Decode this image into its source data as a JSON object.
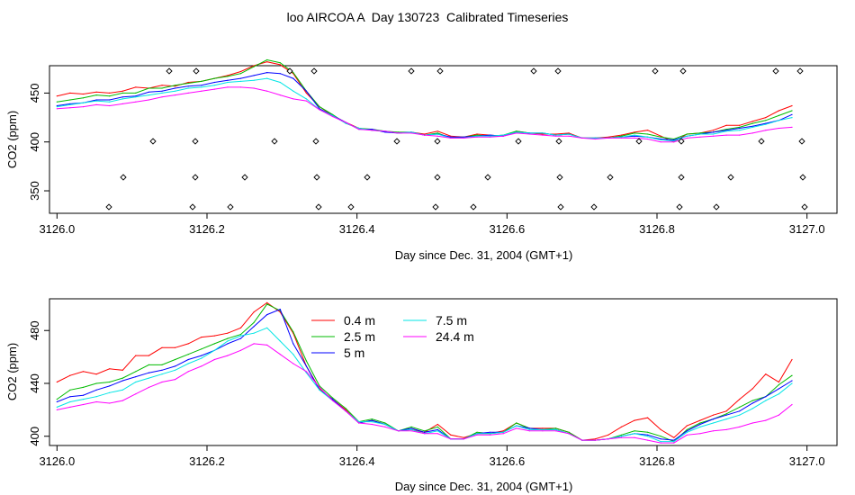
{
  "title": "loo AIRCOA A  Day 130723  Calibrated Timeseries",
  "colors": {
    "0.4 m": "#ff0000",
    "2.5 m": "#00bb00",
    "5 m": "#0000ff",
    "7.5 m": "#00e5e5",
    "24.4 m": "#ff00ff"
  },
  "chart_data": [
    {
      "type": "line",
      "title": "",
      "xlabel": "Day since Dec. 31, 2004 (GMT+1)",
      "ylabel": "CO2 (ppm)",
      "xlim": [
        3125.99,
        3127.04
      ],
      "ylim": [
        327,
        478
      ],
      "x_ticks": [
        "3126.0",
        "3126.2",
        "3126.4",
        "3126.6",
        "3126.8",
        "3127.0"
      ],
      "y_ticks": [
        "350",
        "400",
        "450"
      ],
      "legend": "none",
      "grid": false,
      "x": [
        3126.0,
        3126.0175,
        3126.035,
        3126.0525,
        3126.07,
        3126.0875,
        3126.105,
        3126.1225,
        3126.14,
        3126.1575,
        3126.175,
        3126.1925,
        3126.21,
        3126.2275,
        3126.245,
        3126.2625,
        3126.28,
        3126.2975,
        3126.315,
        3126.3325,
        3126.35,
        3126.3675,
        3126.385,
        3126.4025,
        3126.42,
        3126.4375,
        3126.455,
        3126.4725,
        3126.49,
        3126.5075,
        3126.525,
        3126.5425,
        3126.56,
        3126.5775,
        3126.595,
        3126.6125,
        3126.63,
        3126.6475,
        3126.665,
        3126.6825,
        3126.7,
        3126.7175,
        3126.735,
        3126.7525,
        3126.77,
        3126.7875,
        3126.805,
        3126.8225,
        3126.84,
        3126.8575,
        3126.875,
        3126.8925,
        3126.91,
        3126.9275,
        3126.945,
        3126.9625,
        3126.98
      ],
      "series": [
        {
          "name": "0.4 m",
          "values": [
            447,
            450,
            449,
            451,
            450,
            452,
            456,
            455,
            458,
            457,
            461,
            462,
            465,
            468,
            472,
            478,
            482,
            479,
            470,
            450,
            436,
            427,
            420,
            414,
            412,
            411,
            409,
            410,
            408,
            411,
            406,
            405,
            408,
            407,
            406,
            411,
            409,
            408,
            408,
            409,
            404,
            404,
            405,
            407,
            410,
            412,
            406,
            400,
            408,
            409,
            412,
            417,
            417,
            421,
            425,
            432,
            437
          ]
        },
        {
          "name": "2.5 m",
          "values": [
            441,
            443,
            445,
            448,
            447,
            450,
            450,
            455,
            455,
            458,
            460,
            462,
            465,
            467,
            470,
            477,
            484,
            481,
            471,
            452,
            436,
            428,
            419,
            414,
            413,
            411,
            410,
            410,
            407,
            409,
            404,
            405,
            407,
            406,
            407,
            411,
            409,
            409,
            407,
            408,
            404,
            404,
            404,
            406,
            409,
            408,
            405,
            403,
            408,
            409,
            410,
            413,
            415,
            419,
            422,
            427,
            432
          ]
        },
        {
          "name": "5 m",
          "values": [
            437,
            439,
            440,
            443,
            443,
            446,
            447,
            451,
            452,
            455,
            457,
            458,
            461,
            463,
            465,
            468,
            471,
            470,
            465,
            452,
            434,
            427,
            420,
            413,
            413,
            410,
            409,
            410,
            407,
            408,
            405,
            405,
            406,
            407,
            406,
            410,
            409,
            409,
            407,
            408,
            404,
            404,
            404,
            405,
            406,
            405,
            403,
            402,
            406,
            408,
            410,
            412,
            414,
            416,
            419,
            422,
            428
          ]
        },
        {
          "name": "7.5 m",
          "values": [
            436,
            438,
            440,
            442,
            441,
            444,
            446,
            448,
            450,
            452,
            455,
            456,
            458,
            461,
            462,
            463,
            465,
            461,
            452,
            444,
            433,
            427,
            419,
            414,
            412,
            411,
            409,
            410,
            407,
            408,
            404,
            404,
            406,
            406,
            407,
            410,
            409,
            409,
            407,
            408,
            404,
            404,
            404,
            405,
            407,
            405,
            402,
            401,
            406,
            408,
            408,
            411,
            412,
            415,
            418,
            422,
            425
          ]
        },
        {
          "name": "24.4 m",
          "values": [
            434,
            435,
            436,
            438,
            437,
            439,
            441,
            443,
            446,
            448,
            450,
            452,
            454,
            456,
            456,
            455,
            452,
            448,
            444,
            442,
            433,
            426,
            420,
            413,
            412,
            411,
            409,
            409,
            407,
            406,
            404,
            404,
            405,
            405,
            406,
            409,
            408,
            407,
            406,
            406,
            404,
            403,
            404,
            404,
            404,
            403,
            400,
            400,
            404,
            405,
            406,
            407,
            407,
            409,
            412,
            414,
            415
          ]
        }
      ]
    },
    {
      "type": "line",
      "title": "",
      "xlabel": "Day since Dec. 31, 2004 (GMT+1)",
      "ylabel": "CO2 (ppm)",
      "xlim": [
        3125.99,
        3127.04
      ],
      "ylim": [
        393,
        504
      ],
      "x_ticks": [
        "3126.0",
        "3126.2",
        "3126.4",
        "3126.6",
        "3126.8",
        "3127.0"
      ],
      "y_ticks": [
        "400",
        "440",
        "480"
      ],
      "legend": "top-center",
      "grid": false,
      "x": [
        3126.0,
        3126.0175,
        3126.035,
        3126.0525,
        3126.07,
        3126.0875,
        3126.105,
        3126.1225,
        3126.14,
        3126.1575,
        3126.175,
        3126.1925,
        3126.21,
        3126.2275,
        3126.245,
        3126.2625,
        3126.28,
        3126.2975,
        3126.315,
        3126.3325,
        3126.35,
        3126.3675,
        3126.385,
        3126.4025,
        3126.42,
        3126.4375,
        3126.455,
        3126.4725,
        3126.49,
        3126.5075,
        3126.525,
        3126.5425,
        3126.56,
        3126.5775,
        3126.595,
        3126.6125,
        3126.63,
        3126.6475,
        3126.665,
        3126.6825,
        3126.7,
        3126.7175,
        3126.735,
        3126.7525,
        3126.77,
        3126.7875,
        3126.805,
        3126.8225,
        3126.84,
        3126.8575,
        3126.875,
        3126.8925,
        3126.91,
        3126.9275,
        3126.945,
        3126.9625,
        3126.98
      ],
      "series": [
        {
          "name": "0.4 m",
          "values": [
            441,
            446,
            449,
            447,
            451,
            450,
            461,
            461,
            467,
            467,
            470,
            475,
            476,
            478,
            482,
            494,
            501,
            494,
            478,
            453,
            436,
            428,
            420,
            410,
            412,
            409,
            404,
            405,
            403,
            409,
            401,
            399,
            402,
            402,
            404,
            410,
            406,
            406,
            406,
            403,
            397,
            398,
            401,
            407,
            412,
            414,
            405,
            399,
            408,
            412,
            416,
            419,
            428,
            436,
            447,
            441,
            458
          ]
        },
        {
          "name": "2.5 m",
          "values": [
            428,
            435,
            437,
            440,
            441,
            444,
            449,
            454,
            454,
            458,
            462,
            466,
            470,
            474,
            477,
            486,
            500,
            495,
            479,
            457,
            438,
            429,
            421,
            411,
            413,
            410,
            404,
            407,
            404,
            407,
            398,
            398,
            403,
            402,
            403,
            410,
            406,
            405,
            406,
            403,
            397,
            397,
            398,
            401,
            404,
            403,
            400,
            396,
            405,
            410,
            413,
            417,
            422,
            427,
            430,
            439,
            446
          ]
        },
        {
          "name": "5 m",
          "values": [
            426,
            430,
            431,
            435,
            438,
            442,
            445,
            448,
            450,
            453,
            458,
            461,
            465,
            470,
            474,
            483,
            492,
            496,
            470,
            453,
            435,
            428,
            419,
            410,
            412,
            409,
            404,
            406,
            403,
            405,
            398,
            398,
            402,
            403,
            403,
            408,
            406,
            405,
            405,
            402,
            397,
            397,
            398,
            400,
            402,
            401,
            398,
            397,
            404,
            409,
            413,
            416,
            419,
            425,
            430,
            436,
            442
          ]
        },
        {
          "name": "7.5 m",
          "values": [
            422,
            426,
            428,
            430,
            433,
            435,
            441,
            444,
            447,
            450,
            455,
            459,
            465,
            472,
            476,
            478,
            482,
            472,
            462,
            448,
            435,
            427,
            419,
            411,
            411,
            409,
            404,
            405,
            402,
            404,
            398,
            398,
            402,
            402,
            403,
            408,
            405,
            405,
            405,
            402,
            397,
            397,
            398,
            400,
            402,
            400,
            396,
            396,
            403,
            407,
            410,
            413,
            416,
            421,
            427,
            432,
            440
          ]
        },
        {
          "name": "24.4 m",
          "values": [
            420,
            422,
            424,
            426,
            425,
            427,
            432,
            437,
            441,
            443,
            449,
            453,
            458,
            461,
            465,
            470,
            469,
            462,
            455,
            449,
            437,
            427,
            419,
            410,
            409,
            407,
            404,
            404,
            402,
            402,
            398,
            398,
            401,
            401,
            402,
            406,
            404,
            404,
            404,
            402,
            397,
            397,
            398,
            399,
            399,
            397,
            395,
            395,
            401,
            402,
            404,
            405,
            407,
            410,
            412,
            416,
            424
          ]
        }
      ]
    }
  ]
}
